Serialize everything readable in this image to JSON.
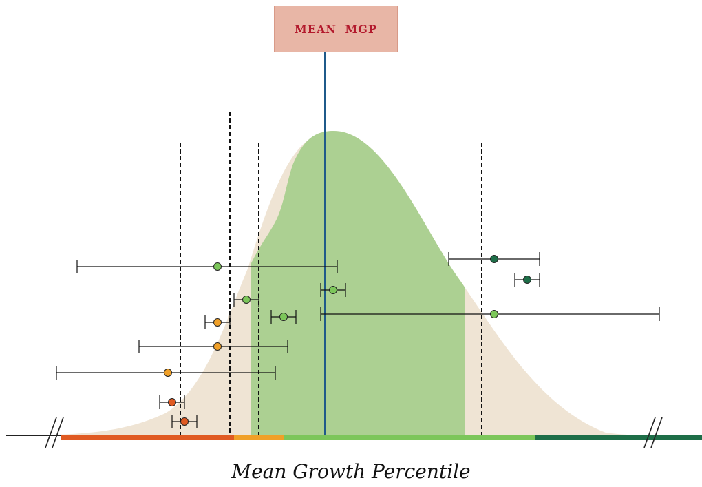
{
  "mean_label": "MEAN MGP",
  "x_title": "Mean Growth Percentile",
  "colors": {
    "population": "#efe4d4",
    "highlight": "#acd092",
    "mean_line": "#1f5a8a",
    "red": "#e05a22",
    "orange": "#f0a028",
    "light_green": "#7cc65a",
    "dark_green": "#1e6e48",
    "axis": "#222222"
  },
  "bands": [
    {
      "name": "red-band",
      "from": 0,
      "to": 21,
      "color": "#e05a22"
    },
    {
      "name": "orange-band",
      "from": 21,
      "to": 27,
      "color": "#f0a028"
    },
    {
      "name": "light-green-band",
      "from": 27,
      "to": 57.5,
      "color": "#7cc65a"
    },
    {
      "name": "dark-green-band",
      "from": 57.5,
      "to": 83.5,
      "color": "#1e6e48"
    }
  ],
  "cut_lines": [
    21,
    27,
    30.5,
    57.5
  ],
  "mean": 38.5,
  "estimates": [
    {
      "mgp": 25.5,
      "low": 8.5,
      "high": 40,
      "category": "light_green"
    },
    {
      "mgp": 59,
      "low": 53.5,
      "high": 64.5,
      "category": "dark_green"
    },
    {
      "mgp": 63,
      "low": 61.5,
      "high": 64.5,
      "category": "dark_green"
    },
    {
      "mgp": 39.5,
      "low": 38,
      "high": 41,
      "category": "light_green"
    },
    {
      "mgp": 29,
      "low": 27.5,
      "high": 30.5,
      "category": "light_green"
    },
    {
      "mgp": 33.5,
      "low": 32,
      "high": 35,
      "category": "light_green"
    },
    {
      "mgp": 59,
      "low": 38,
      "high": 79,
      "category": "light_green"
    },
    {
      "mgp": 25.5,
      "low": 24,
      "high": 27,
      "category": "orange"
    },
    {
      "mgp": 25.5,
      "low": 16,
      "high": 34,
      "category": "orange"
    },
    {
      "mgp": 19.5,
      "low": 6,
      "high": 32.5,
      "category": "orange"
    },
    {
      "mgp": 20,
      "low": 18.5,
      "high": 21.5,
      "category": "red"
    },
    {
      "mgp": 21.5,
      "low": 20,
      "high": 23,
      "category": "red"
    }
  ]
}
